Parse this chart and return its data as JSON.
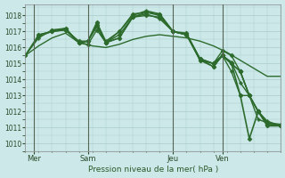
{
  "background_color": "#cce8e8",
  "grid_color": "#aacccc",
  "line_color": "#2d6b2d",
  "vline_color": "#556655",
  "xlabel": "Pression niveau de la mer( hPa )",
  "ylim": [
    1009.5,
    1018.7
  ],
  "yticks": [
    1010,
    1011,
    1012,
    1013,
    1014,
    1015,
    1016,
    1017,
    1018
  ],
  "xlim": [
    0,
    114
  ],
  "xtick_labels": [
    "Mer",
    "Sam",
    "Jeu",
    "Ven"
  ],
  "xtick_positions": [
    4,
    28,
    66,
    88
  ],
  "vline_positions": [
    4,
    28,
    66,
    88
  ],
  "series": [
    {
      "x": [
        0,
        6,
        12,
        18,
        24,
        30,
        36,
        42,
        48,
        54,
        60,
        66,
        72,
        78,
        84,
        90,
        96,
        102,
        108,
        114
      ],
      "y": [
        1015.5,
        1016.1,
        1016.6,
        1016.9,
        1016.3,
        1016.1,
        1016.0,
        1016.2,
        1016.5,
        1016.7,
        1016.8,
        1016.7,
        1016.6,
        1016.4,
        1016.1,
        1015.7,
        1015.2,
        1014.7,
        1014.2,
        1014.2
      ],
      "marker": null,
      "linewidth": 1.0
    },
    {
      "x": [
        0,
        6,
        12,
        18,
        24,
        28,
        32,
        36,
        42,
        48,
        54,
        60,
        66,
        72,
        78,
        84,
        88,
        92,
        96,
        100,
        104,
        108,
        114
      ],
      "y": [
        1015.5,
        1016.7,
        1017.0,
        1017.1,
        1016.3,
        1016.2,
        1017.1,
        1016.3,
        1016.6,
        1017.9,
        1018.0,
        1017.9,
        1017.0,
        1016.8,
        1015.2,
        1014.8,
        1015.5,
        1015.0,
        1014.5,
        1013.0,
        1012.0,
        1011.2,
        1011.1
      ],
      "marker": "D",
      "markersize": 2.5,
      "linewidth": 1.0
    },
    {
      "x": [
        0,
        6,
        12,
        18,
        24,
        28,
        32,
        36,
        42,
        48,
        54,
        60,
        66,
        72,
        78,
        84,
        88,
        92,
        96,
        100,
        104,
        108,
        114
      ],
      "y": [
        1015.5,
        1016.8,
        1017.0,
        1017.2,
        1016.3,
        1016.4,
        1017.3,
        1016.3,
        1016.6,
        1017.9,
        1018.1,
        1017.8,
        1017.0,
        1016.8,
        1015.3,
        1014.8,
        1015.5,
        1015.1,
        1013.8,
        1013.0,
        1012.0,
        1011.4,
        1011.1
      ],
      "marker": "P",
      "markersize": 2.5,
      "linewidth": 1.0
    },
    {
      "x": [
        0,
        6,
        12,
        18,
        24,
        28,
        32,
        36,
        42,
        48,
        54,
        60,
        66,
        72,
        78,
        84,
        88,
        92,
        96,
        100,
        104,
        108,
        114
      ],
      "y": [
        1015.5,
        1016.6,
        1017.1,
        1017.1,
        1016.3,
        1016.4,
        1017.5,
        1016.4,
        1017.0,
        1018.0,
        1018.3,
        1018.1,
        1017.0,
        1016.8,
        1015.2,
        1015.0,
        1015.5,
        1014.5,
        1013.0,
        1013.0,
        1011.5,
        1011.3,
        1011.2
      ],
      "marker": "P",
      "markersize": 2.5,
      "linewidth": 1.0
    },
    {
      "x": [
        6,
        12,
        18,
        24,
        28,
        32,
        36,
        42,
        48,
        54,
        60,
        66,
        72,
        78,
        84,
        88,
        92,
        96,
        100,
        104,
        108,
        114
      ],
      "y": [
        1016.8,
        1017.0,
        1017.1,
        1016.4,
        1016.4,
        1017.4,
        1016.3,
        1016.8,
        1017.9,
        1018.2,
        1018.0,
        1017.0,
        1016.8,
        1015.3,
        1015.0,
        1015.8,
        1015.5,
        1014.5,
        1013.0,
        1012.0,
        1011.3,
        1011.1
      ],
      "marker": "D",
      "markersize": 2.5,
      "linewidth": 1.0
    },
    {
      "x": [
        12,
        18,
        24,
        28,
        32,
        36,
        42,
        48,
        54,
        60,
        66,
        72,
        78,
        84,
        88,
        92,
        96,
        100,
        104,
        108,
        114
      ],
      "y": [
        1017.1,
        1017.2,
        1016.3,
        1016.4,
        1017.6,
        1016.3,
        1017.0,
        1018.1,
        1018.2,
        1018.1,
        1017.0,
        1016.9,
        1015.3,
        1015.0,
        1015.5,
        1015.0,
        1014.5,
        1013.0,
        1012.0,
        1011.2,
        1011.1
      ],
      "marker": "D",
      "markersize": 2.5,
      "linewidth": 1.0
    },
    {
      "x": [
        84,
        88,
        92,
        96,
        100,
        104,
        108,
        114
      ],
      "y": [
        1015.0,
        1015.5,
        1015.0,
        1013.0,
        1010.3,
        1012.0,
        1011.1,
        1011.1
      ],
      "marker": "D",
      "markersize": 2.5,
      "linewidth": 1.2
    }
  ]
}
